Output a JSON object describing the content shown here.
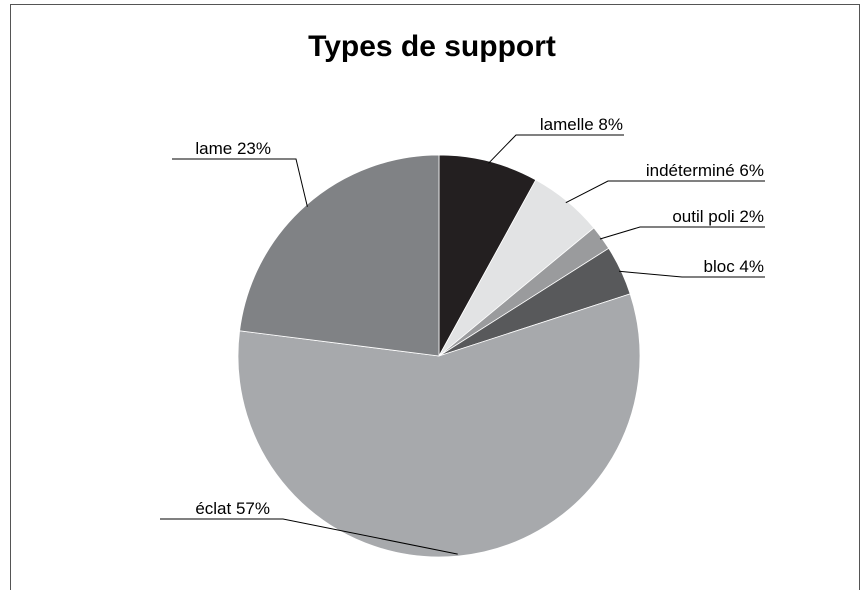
{
  "chart_data": {
    "type": "pie",
    "title": "Types de support",
    "slices": [
      {
        "name": "lamelle",
        "value": 8,
        "label": "lamelle 8%",
        "color": "#231f20"
      },
      {
        "name": "indéterminé",
        "value": 6,
        "label": "indéterminé 6%",
        "color": "#e2e3e4"
      },
      {
        "name": "outil poli",
        "value": 2,
        "label": "outil poli 2%",
        "color": "#9a9b9d"
      },
      {
        "name": "bloc",
        "value": 4,
        "label": "bloc 4%",
        "color": "#58595b"
      },
      {
        "name": "éclat",
        "value": 57,
        "label": "éclat 57%",
        "color": "#a7a9ac"
      },
      {
        "name": "lame",
        "value": 23,
        "label": "lame 23%",
        "color": "#808285"
      }
    ],
    "start": "12 o'clock, clockwise"
  }
}
